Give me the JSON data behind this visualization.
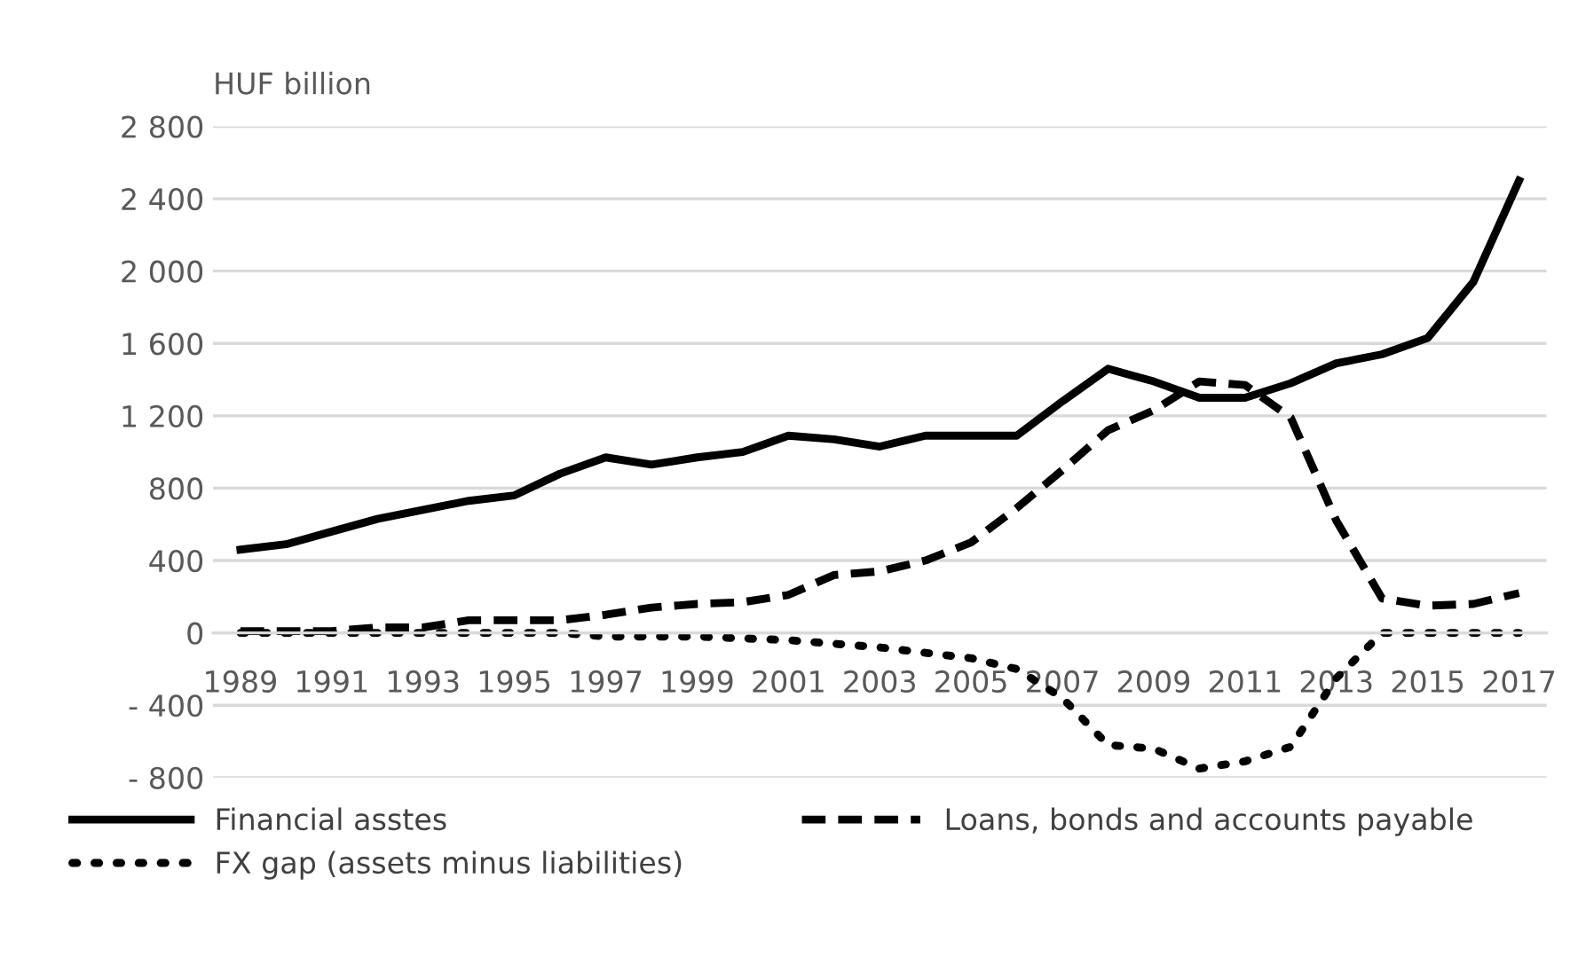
{
  "chart_data": {
    "type": "line",
    "ylabel": "HUF billion",
    "categories": [
      "1989",
      null,
      "1991",
      null,
      "1993",
      null,
      "1995",
      null,
      "1997",
      null,
      "1999",
      null,
      "2001",
      null,
      "2003",
      null,
      "2005",
      null,
      "2007",
      null,
      "2009",
      null,
      "2011",
      null,
      "2013",
      null,
      "2015",
      null,
      "2017"
    ],
    "series": [
      {
        "name": "Financial asstes",
        "color": "#000000",
        "line_style": "solid",
        "values": [
          460,
          490,
          560,
          630,
          680,
          730,
          760,
          880,
          970,
          930,
          970,
          1000,
          1090,
          1070,
          1030,
          1090,
          1090,
          1090,
          1280,
          1460,
          1390,
          1300,
          1300,
          1380,
          1490,
          1540,
          1630,
          1940,
          2500
        ]
      },
      {
        "name": "Loans, bonds and accounts payable",
        "color": "#000000",
        "line_style": "dashed",
        "values": [
          10,
          10,
          10,
          30,
          30,
          70,
          70,
          70,
          100,
          140,
          160,
          170,
          210,
          320,
          340,
          400,
          500,
          690,
          900,
          1120,
          1230,
          1390,
          1370,
          1190,
          620,
          190,
          150,
          160,
          220
        ]
      },
      {
        "name": "FX gap (assets minus liabilities)",
        "color": "#000000",
        "line_style": "dotted",
        "values": [
          0,
          0,
          0,
          0,
          0,
          0,
          0,
          0,
          -20,
          -20,
          -20,
          -30,
          -40,
          -60,
          -80,
          -110,
          -140,
          -200,
          -360,
          -620,
          -640,
          -750,
          -710,
          -630,
          -250,
          0,
          0,
          0,
          0
        ]
      }
    ],
    "ylim": [
      -800,
      2800
    ],
    "yticks": [
      {
        "value": -800,
        "label": "- 800"
      },
      {
        "value": -400,
        "label": "- 400"
      },
      0,
      {
        "value": 400,
        "label": "400"
      },
      {
        "value": 800,
        "label": "800"
      },
      {
        "value": 1200,
        "label": "1 200"
      },
      {
        "value": 1600,
        "label": "1 600"
      },
      {
        "value": 2000,
        "label": "2 000"
      },
      {
        "value": 2400,
        "label": "2 400"
      },
      {
        "value": 2800,
        "label": "2 800"
      }
    ],
    "grid": "y",
    "legend": "bottom"
  }
}
